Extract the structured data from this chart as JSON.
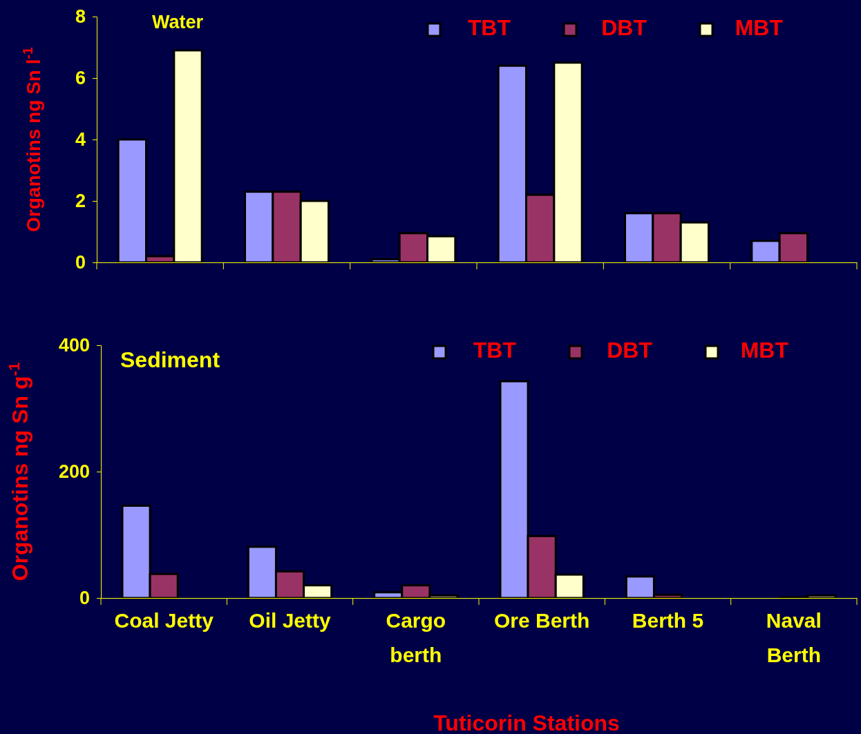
{
  "chart_data": [
    {
      "type": "bar",
      "title": "Water",
      "ylabel": "Organotins ng Sn l$^{-1}$",
      "categories": [
        null,
        null,
        null,
        null,
        null,
        null
      ],
      "ylim": [
        0,
        8
      ],
      "yticks": [
        0,
        2,
        4,
        6,
        8
      ],
      "legend": "top right",
      "series": [
        {
          "name": "TBT",
          "color": "#9999ff",
          "values": [
            4.0,
            2.3,
            0.1,
            6.4,
            1.6,
            0.7
          ]
        },
        {
          "name": "DBT",
          "color": "#993366",
          "values": [
            0.2,
            2.3,
            0.95,
            2.2,
            1.6,
            0.95
          ]
        },
        {
          "name": "MBT",
          "color": "#ffffcc",
          "values": [
            6.9,
            2.0,
            0.85,
            6.5,
            1.3,
            null
          ]
        }
      ]
    },
    {
      "type": "bar",
      "title": "Sediment",
      "ylabel": "Organotins ng Sn g$^{-1}$",
      "xlabel": "Tuticorin Stations",
      "categories": [
        "Coal Jetty",
        "Oil Jetty",
        "Cargo berth",
        "Ore Berth",
        "Berth 5",
        "Naval Berth"
      ],
      "ylim": [
        0,
        400
      ],
      "yticks": [
        0,
        200,
        400
      ],
      "legend": "top right",
      "series": [
        {
          "name": "TBT",
          "color": "#9999ff",
          "values": [
            146,
            81,
            9,
            343,
            34,
            null
          ]
        },
        {
          "name": "DBT",
          "color": "#993366",
          "values": [
            38,
            42,
            20,
            98,
            5,
            1
          ]
        },
        {
          "name": "MBT",
          "color": "#ffffcc",
          "values": [
            null,
            20,
            4,
            37,
            null,
            4
          ]
        }
      ]
    }
  ]
}
